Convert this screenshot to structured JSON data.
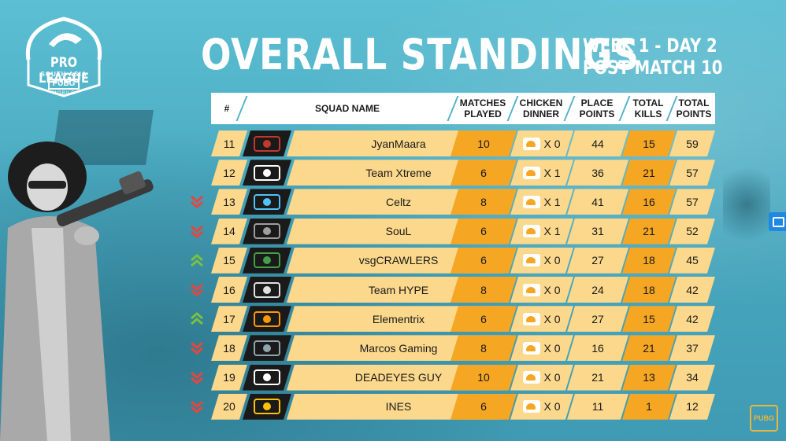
{
  "logo": {
    "line1": "PRO LEAGUE",
    "line2": "SOUTH ASIA",
    "line3": "PUBG",
    "line4": "MOBILE"
  },
  "title": "OVERALL STANDINGS",
  "subtitle": {
    "line1": "WEEK 1 - DAY 2",
    "line2": "POST MATCH 10"
  },
  "headers": {
    "rank": "#",
    "squad": "SQUAD NAME",
    "matches_1": "MATCHES",
    "matches_2": "PLAYED",
    "chicken_1": "CHICKEN",
    "chicken_2": "DINNER",
    "place_1": "PLACE",
    "place_2": "POINTS",
    "kills_1": "TOTAL",
    "kills_2": "KILLS",
    "total_1": "TOTAL",
    "total_2": "POINTS"
  },
  "rows": [
    {
      "rank": "11",
      "squad": "JyanMaara",
      "matches": "10",
      "chicken": "X 0",
      "place": "44",
      "kills": "15",
      "total": "59",
      "trend": "none",
      "logo_icon": "jyanmaara-logo-icon"
    },
    {
      "rank": "12",
      "squad": "Team Xtreme",
      "matches": "6",
      "chicken": "X 1",
      "place": "36",
      "kills": "21",
      "total": "57",
      "trend": "none",
      "logo_icon": "team-xtreme-logo-icon"
    },
    {
      "rank": "13",
      "squad": "Celtz",
      "matches": "8",
      "chicken": "X 1",
      "place": "41",
      "kills": "16",
      "total": "57",
      "trend": "down",
      "logo_icon": "celtz-logo-icon"
    },
    {
      "rank": "14",
      "squad": "SouL",
      "matches": "6",
      "chicken": "X 1",
      "place": "31",
      "kills": "21",
      "total": "52",
      "trend": "down",
      "logo_icon": "soul-logo-icon"
    },
    {
      "rank": "15",
      "squad": "vsgCRAWLERS",
      "matches": "6",
      "chicken": "X 0",
      "place": "27",
      "kills": "18",
      "total": "45",
      "trend": "up",
      "logo_icon": "vsgcrawlers-logo-icon"
    },
    {
      "rank": "16",
      "squad": "Team HYPE",
      "matches": "8",
      "chicken": "X 0",
      "place": "24",
      "kills": "18",
      "total": "42",
      "trend": "down",
      "logo_icon": "team-hype-logo-icon"
    },
    {
      "rank": "17",
      "squad": "Elementrix",
      "matches": "6",
      "chicken": "X 0",
      "place": "27",
      "kills": "15",
      "total": "42",
      "trend": "up",
      "logo_icon": "elementrix-logo-icon"
    },
    {
      "rank": "18",
      "squad": "Marcos Gaming",
      "matches": "8",
      "chicken": "X 0",
      "place": "16",
      "kills": "21",
      "total": "37",
      "trend": "down",
      "logo_icon": "marcos-gaming-logo-icon"
    },
    {
      "rank": "19",
      "squad": "DEADEYES GUY",
      "matches": "10",
      "chicken": "X 0",
      "place": "21",
      "kills": "13",
      "total": "34",
      "trend": "down",
      "logo_icon": "deadeyes-guy-logo-icon"
    },
    {
      "rank": "20",
      "squad": "INES",
      "matches": "6",
      "chicken": "X 0",
      "place": "11",
      "kills": "1",
      "total": "12",
      "trend": "down",
      "logo_icon": "ines-logo-icon"
    }
  ],
  "corner_logo": "PUBG",
  "colors": {
    "light": "#fbd88b",
    "orange": "#f5a623",
    "down": "#e8453c",
    "up": "#7bc043",
    "background": "#4fb0c6"
  }
}
